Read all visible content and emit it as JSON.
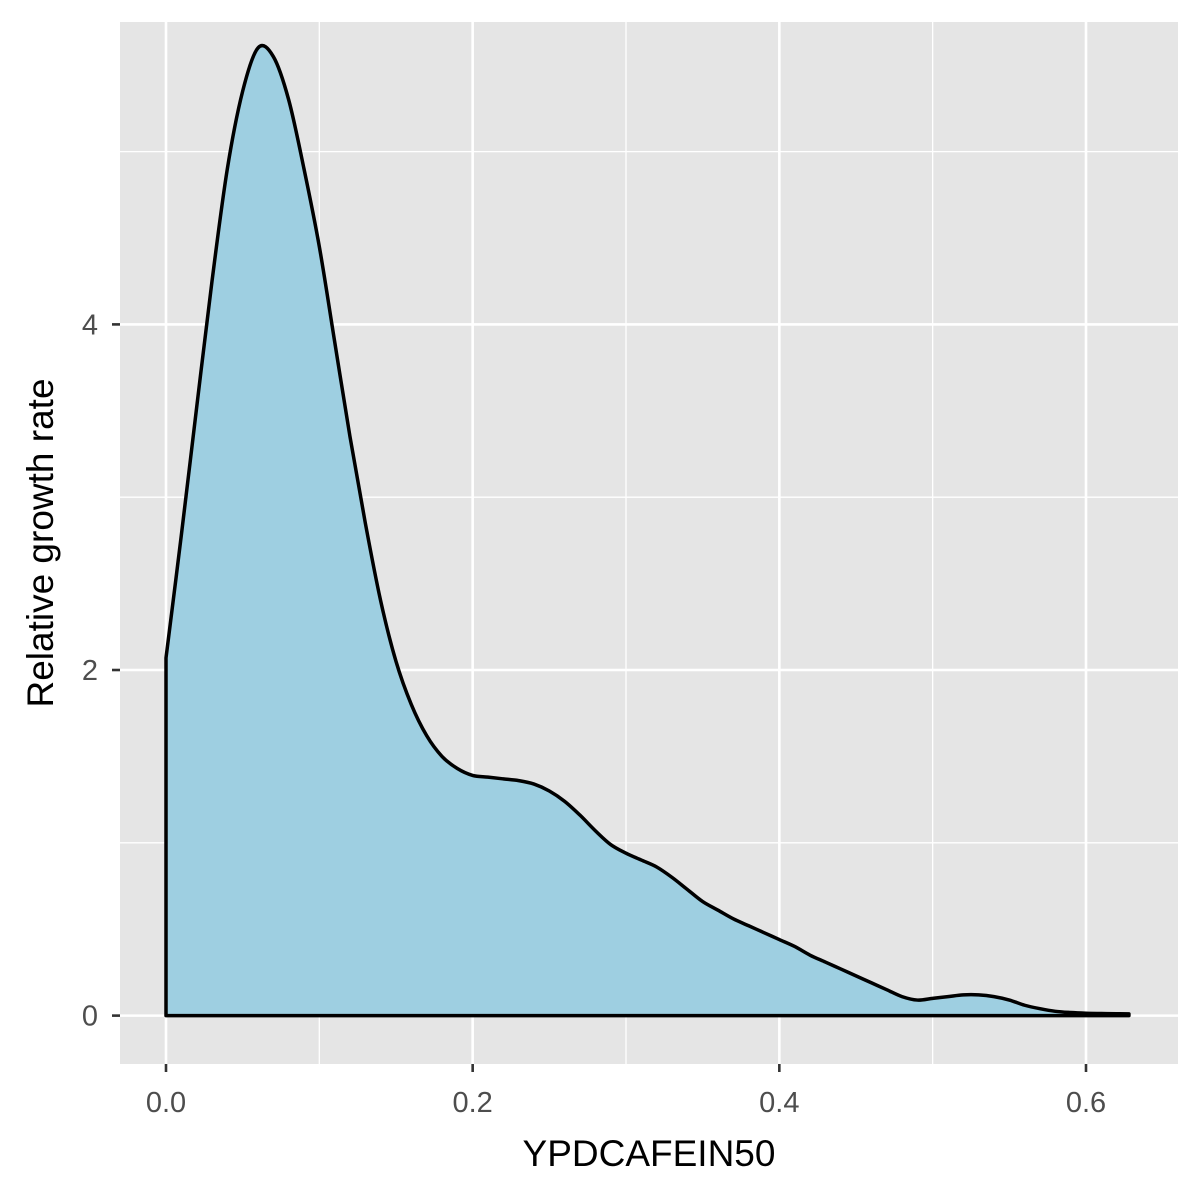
{
  "chart_data": {
    "type": "area",
    "title": "",
    "xlabel": "YPDCAFEIN50",
    "ylabel": "Relative growth rate",
    "xlim": [
      -0.03,
      0.66
    ],
    "ylim": [
      -0.28,
      5.75
    ],
    "x_ticks": [
      0.0,
      0.2,
      0.4,
      0.6
    ],
    "x_tick_labels": [
      "0.0",
      "0.2",
      "0.4",
      "0.6"
    ],
    "y_ticks": [
      0,
      2,
      4
    ],
    "y_tick_labels": [
      "0",
      "2",
      "4"
    ],
    "x_minor_gridlines": [
      0.1,
      0.3,
      0.5
    ],
    "y_minor_gridlines": [
      1,
      3,
      5
    ],
    "grid": true,
    "legend": "none",
    "series": [
      {
        "fill_color": "#9ecfe1",
        "line_color": "#000000",
        "x": [
          0.0,
          0.01,
          0.02,
          0.03,
          0.04,
          0.05,
          0.06,
          0.07,
          0.08,
          0.09,
          0.1,
          0.11,
          0.12,
          0.13,
          0.14,
          0.15,
          0.16,
          0.17,
          0.18,
          0.19,
          0.2,
          0.21,
          0.22,
          0.23,
          0.24,
          0.25,
          0.26,
          0.27,
          0.28,
          0.29,
          0.3,
          0.31,
          0.32,
          0.33,
          0.34,
          0.35,
          0.36,
          0.37,
          0.38,
          0.39,
          0.4,
          0.41,
          0.42,
          0.43,
          0.44,
          0.45,
          0.46,
          0.47,
          0.48,
          0.49,
          0.5,
          0.51,
          0.52,
          0.53,
          0.54,
          0.55,
          0.56,
          0.57,
          0.58,
          0.59,
          0.6,
          0.61,
          0.62,
          0.628
        ],
        "y": [
          2.07,
          2.78,
          3.52,
          4.25,
          4.9,
          5.35,
          5.6,
          5.55,
          5.3,
          4.9,
          4.45,
          3.9,
          3.35,
          2.85,
          2.4,
          2.05,
          1.8,
          1.62,
          1.5,
          1.43,
          1.39,
          1.38,
          1.37,
          1.36,
          1.34,
          1.3,
          1.24,
          1.16,
          1.07,
          0.99,
          0.94,
          0.9,
          0.86,
          0.8,
          0.73,
          0.66,
          0.61,
          0.56,
          0.52,
          0.48,
          0.44,
          0.4,
          0.35,
          0.31,
          0.27,
          0.23,
          0.19,
          0.15,
          0.11,
          0.09,
          0.1,
          0.11,
          0.12,
          0.12,
          0.11,
          0.09,
          0.06,
          0.04,
          0.025,
          0.018,
          0.014,
          0.012,
          0.011,
          0.01
        ]
      }
    ]
  }
}
